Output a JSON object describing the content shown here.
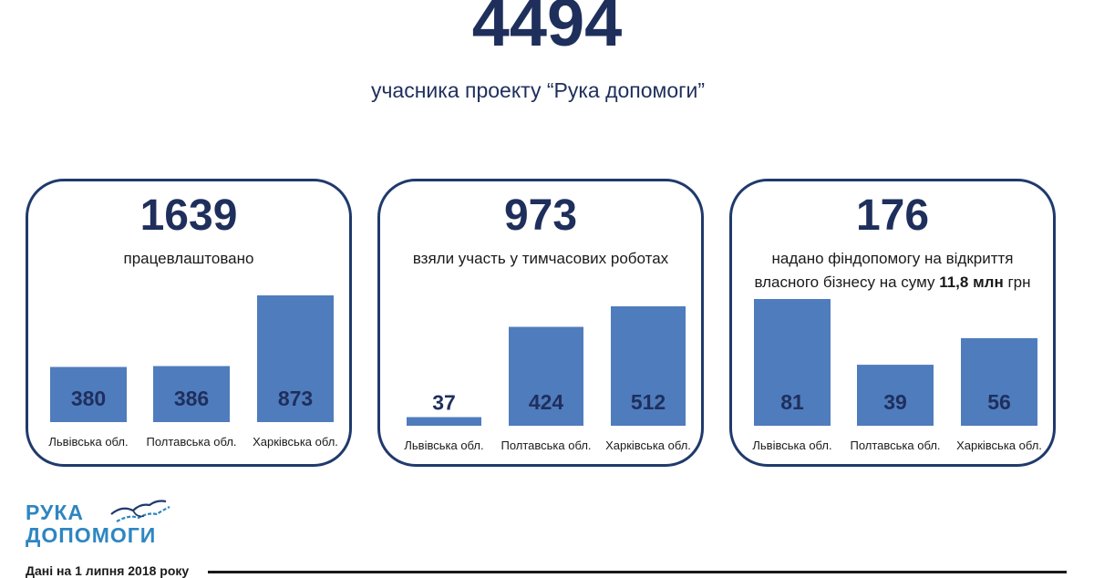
{
  "header": {
    "total": "4494",
    "subtitle": "учасника проекту “Рука допомоги”"
  },
  "cards": [
    {
      "number": "1639",
      "caption_html": "працевлаштовано",
      "chart_type": "bar"
    },
    {
      "number": "973",
      "caption_html": "взяли участь у тимчасових роботах",
      "chart_type": "bar"
    },
    {
      "number": "176",
      "caption_html": "надано фіндопомогу на відкриття власного бізнесу на суму <b>11,8 млн</b> грн",
      "chart_type": "bar"
    }
  ],
  "chart_data": [
    {
      "type": "bar",
      "title": "працевлаштовано",
      "categories": [
        "Львівська обл.",
        "Полтавська обл.",
        "Харківська обл."
      ],
      "values": [
        380,
        386,
        873
      ],
      "ylim": [
        0,
        873
      ]
    },
    {
      "type": "bar",
      "title": "взяли участь у тимчасових роботах",
      "categories": [
        "Львівська обл.",
        "Полтавська обл.",
        "Харківська обл."
      ],
      "values": [
        37,
        424,
        512
      ],
      "ylim": [
        0,
        512
      ]
    },
    {
      "type": "bar",
      "title": "надано фіндопомогу на відкриття власного бізнесу на суму 11,8 млн грн",
      "categories": [
        "Львівська обл.",
        "Полтавська обл.",
        "Харківська обл."
      ],
      "values": [
        81,
        39,
        56
      ],
      "ylim": [
        0,
        81
      ]
    }
  ],
  "logo": {
    "line1": "РУКА",
    "line2": "ДОПОМОГИ",
    "icon": "handshake-icon"
  },
  "footer": {
    "note": "Дані на 1 липня 2018 року"
  },
  "colors": {
    "bar": "#4f7cbd",
    "title": "#1f2f5c",
    "border": "#1f3a6b",
    "logo": "#2e86c1"
  }
}
